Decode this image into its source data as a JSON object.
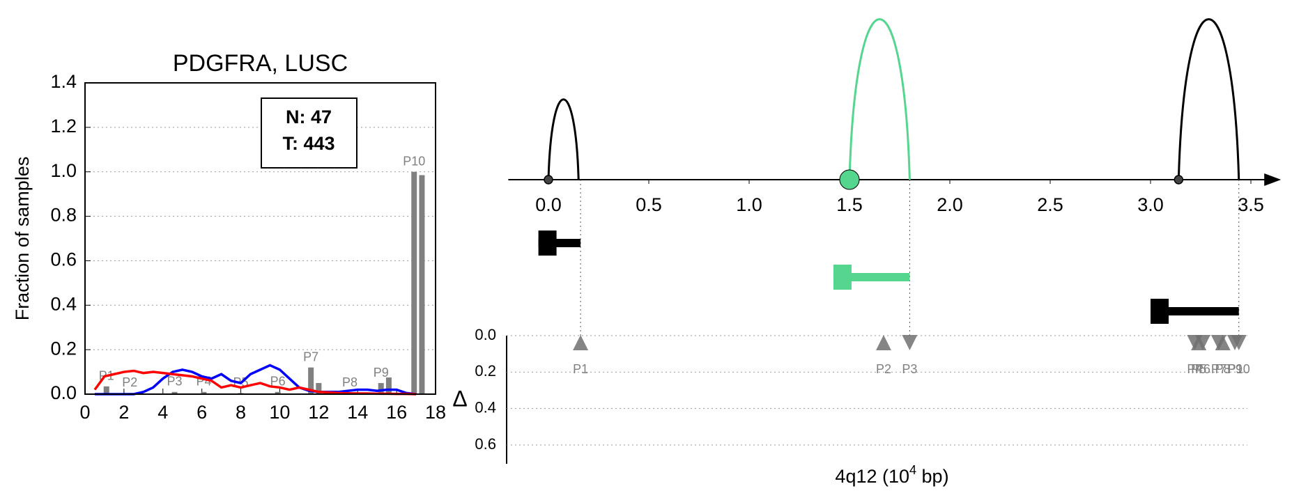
{
  "chart_data": [
    {
      "type": "bar",
      "title": "PDGFRA, LUSC",
      "ylabel": "Fraction of samples",
      "xlim": [
        0,
        18
      ],
      "xticks": [
        0,
        2,
        4,
        6,
        8,
        10,
        12,
        14,
        16,
        18
      ],
      "ylim": [
        0,
        1.4
      ],
      "yticks": [
        {
          "value": 0,
          "label": "0.0"
        },
        0.2,
        0.4,
        0.6,
        0.8,
        {
          "value": 1,
          "label": "1.0"
        },
        1.2,
        1.4
      ],
      "grid": true,
      "annotation": [
        "N: 47",
        "T: 443"
      ],
      "bar_color": "#808080",
      "peaks": [
        {
          "label": "P1",
          "x": [
            1.1
          ],
          "values": [
            0.035
          ]
        },
        {
          "label": "P2",
          "x": [
            2.3
          ],
          "values": [
            0.005
          ]
        },
        {
          "label": "P3",
          "x": [
            4.6
          ],
          "values": [
            0.01
          ]
        },
        {
          "label": "P4",
          "x": [
            6.1
          ],
          "values": [
            0.01
          ]
        },
        {
          "label": "P5",
          "x": [
            8.0
          ],
          "values": [
            0.005
          ]
        },
        {
          "label": "P6",
          "x": [
            9.9
          ],
          "values": [
            0.01
          ]
        },
        {
          "label": "P7",
          "x": [
            11.6,
            12.0
          ],
          "values": [
            0.12,
            0.05
          ]
        },
        {
          "label": "P8",
          "x": [
            13.6
          ],
          "values": [
            0.005
          ]
        },
        {
          "label": "P9",
          "x": [
            15.2,
            15.6
          ],
          "values": [
            0.05,
            0.075
          ]
        },
        {
          "label": "P10",
          "x": [
            16.9,
            17.3
          ],
          "values": [
            1.0,
            0.985
          ]
        }
      ],
      "x": [
        0.5,
        1,
        1.5,
        2,
        2.5,
        3,
        3.5,
        4,
        4.5,
        5,
        5.5,
        6,
        6.5,
        7,
        7.5,
        8,
        8.5,
        9,
        9.5,
        10,
        10.5,
        11,
        11.5,
        12,
        12.5,
        13,
        13.5,
        14,
        14.5,
        15,
        15.5,
        16,
        16.5,
        17
      ],
      "series": [
        {
          "color": "#0000ff",
          "values": [
            0,
            0,
            0,
            0,
            0,
            0.01,
            0.03,
            0.07,
            0.1,
            0.11,
            0.1,
            0.08,
            0.07,
            0.09,
            0.06,
            0.05,
            0.09,
            0.11,
            0.13,
            0.11,
            0.07,
            0.03,
            0.015,
            0.01,
            0.01,
            0.01,
            0.015,
            0.02,
            0.02,
            0.015,
            0.02,
            0.02,
            0.005,
            0
          ]
        },
        {
          "color": "#ff0000",
          "values": [
            0.02,
            0.08,
            0.09,
            0.1,
            0.105,
            0.095,
            0.1,
            0.095,
            0.09,
            0.085,
            0.08,
            0.07,
            0.06,
            0.03,
            0.04,
            0.03,
            0.04,
            0.05,
            0.035,
            0.03,
            0.02,
            0.03,
            0.02,
            0.01,
            0.008,
            0.005,
            0.004,
            0.003,
            0.003,
            0.002,
            0.002,
            0.001,
            0.001,
            0
          ]
        }
      ]
    },
    {
      "type": "arc",
      "xlim": [
        -0.2,
        3.65
      ],
      "xticks": [
        {
          "value": 0,
          "label": "0.0"
        },
        0.5,
        {
          "value": 1,
          "label": "1.0"
        },
        1.5,
        {
          "value": 2,
          "label": "2.0"
        },
        2.5,
        {
          "value": 3,
          "label": "3.0"
        },
        3.5
      ],
      "xlabel": [
        "4q12 (10",
        "4",
        " bp)"
      ],
      "arcs": [
        {
          "start": 0,
          "end": 0.15,
          "color": "#000000"
        },
        {
          "start": 1.5,
          "end": 1.8,
          "color": "#55d68f"
        },
        {
          "start": 3.14,
          "end": 3.44,
          "color": "#000000"
        }
      ],
      "segments": [
        {
          "start": -0.05,
          "end": 0.16,
          "color": "#000000"
        },
        {
          "start": 1.42,
          "end": 1.8,
          "color": "#55d68f"
        },
        {
          "start": 3.0,
          "end": 3.44,
          "color": "#000000"
        }
      ],
      "ylabel": "Δ",
      "ylim": [
        0,
        0.7
      ],
      "yticks": [
        {
          "value": 0,
          "label": "0.0"
        },
        0.2,
        0.4,
        0.6
      ],
      "grid": true,
      "marker_color": "#707070",
      "markers": [
        {
          "label": "P1",
          "x": 0.16,
          "value": 0,
          "direction": "up"
        },
        {
          "label": "P2",
          "x": 1.67,
          "value": 0,
          "direction": "up"
        },
        {
          "label": "P3",
          "x": 1.8,
          "value": 0,
          "direction": "down"
        },
        {
          "label": "P4",
          "x": 3.22,
          "value": 0,
          "direction": "down"
        },
        {
          "label": "P5",
          "x": 3.24,
          "value": 0,
          "direction": "up"
        },
        {
          "label": "P6",
          "x": 3.26,
          "value": 0,
          "direction": "down"
        },
        {
          "label": "P7",
          "x": 3.34,
          "value": 0,
          "direction": "down"
        },
        {
          "label": "P8",
          "x": 3.36,
          "value": 0,
          "direction": "up"
        },
        {
          "label": "P9",
          "x": 3.42,
          "value": 0,
          "direction": "down"
        },
        {
          "label": "P10",
          "x": 3.44,
          "value": 0,
          "direction": "down"
        }
      ]
    }
  ]
}
